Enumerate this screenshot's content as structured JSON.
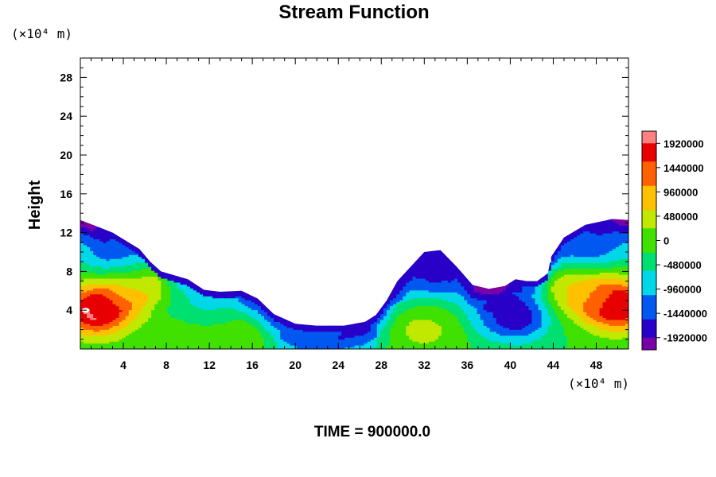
{
  "chart_data": {
    "type": "heatmap",
    "title": "Stream Function",
    "ylabel": "Height",
    "xlabel": "",
    "x_unit": "(×10⁴ m)",
    "y_unit": "(×10⁴ m)",
    "xlim": [
      0,
      51
    ],
    "ylim": [
      0,
      30
    ],
    "x_ticks": [
      "4",
      "8",
      "12",
      "16",
      "20",
      "24",
      "28",
      "32",
      "36",
      "40",
      "44",
      "48"
    ],
    "y_ticks": [
      "4",
      "8",
      "12",
      "16",
      "20",
      "24",
      "28"
    ],
    "colorbar": {
      "min": -2160000,
      "max": 2160000,
      "tick_labels": [
        "1920000",
        "1440000",
        "960000",
        "480000",
        "0",
        "-480000",
        "-960000",
        "-1440000",
        "-1920000"
      ]
    },
    "terrain_top": [
      [
        0,
        13.3
      ],
      [
        3,
        12.0
      ],
      [
        5.5,
        10.3
      ],
      [
        6.5,
        9.0
      ],
      [
        7.5,
        8.0
      ],
      [
        10,
        7.2
      ],
      [
        11.5,
        6.1
      ],
      [
        13,
        5.9
      ],
      [
        15,
        6.0
      ],
      [
        16.5,
        5.2
      ],
      [
        18,
        3.6
      ],
      [
        20,
        2.6
      ],
      [
        22,
        2.4
      ],
      [
        24.5,
        2.4
      ],
      [
        26.5,
        2.8
      ],
      [
        27.5,
        3.5
      ],
      [
        28.5,
        5.0
      ],
      [
        29.5,
        7.0
      ],
      [
        31,
        8.8
      ],
      [
        32,
        10.0
      ],
      [
        33.5,
        10.2
      ],
      [
        35,
        8.5
      ],
      [
        36.5,
        6.6
      ],
      [
        38,
        6.2
      ],
      [
        39.5,
        6.5
      ],
      [
        40.5,
        7.2
      ],
      [
        41.5,
        7.0
      ],
      [
        42.5,
        7.0
      ],
      [
        43.5,
        7.8
      ],
      [
        43.8,
        9.5
      ],
      [
        45,
        11.5
      ],
      [
        47,
        12.8
      ],
      [
        49.5,
        13.4
      ],
      [
        51,
        13.3
      ]
    ],
    "features": [
      {
        "x": 1.5,
        "y": 4.0,
        "value": 2000000
      },
      {
        "x": 50.0,
        "y": 4.5,
        "value": 1900000
      },
      {
        "x": 5.5,
        "y": 6.5,
        "value": 700000
      },
      {
        "x": 46.0,
        "y": 6.0,
        "value": 700000
      },
      {
        "x": 32.0,
        "y": 2.0,
        "value": 300000
      },
      {
        "x": 14.5,
        "y": 1.0,
        "value": 150000
      },
      {
        "x": 10.0,
        "y": 1.0,
        "value": 50000
      },
      {
        "x": 4.0,
        "y": 10.0,
        "value": -1500000
      },
      {
        "x": 33.0,
        "y": 8.0,
        "value": -1600000
      },
      {
        "x": 40.5,
        "y": 3.5,
        "value": -1800000
      },
      {
        "x": 47.0,
        "y": 11.0,
        "value": -1500000
      },
      {
        "x": 12.0,
        "y": 5.0,
        "value": -900000
      },
      {
        "x": 22.0,
        "y": 2.0,
        "value": -1400000
      }
    ],
    "colors": [
      "#7a00a8",
      "#2800c8",
      "#0058f0",
      "#00d8e8",
      "#00e070",
      "#40e000",
      "#c0e800",
      "#ffc000",
      "#ff6000",
      "#e80000",
      "#ff8080"
    ]
  },
  "footer": {
    "time_label": "TIME = 900000.0"
  }
}
